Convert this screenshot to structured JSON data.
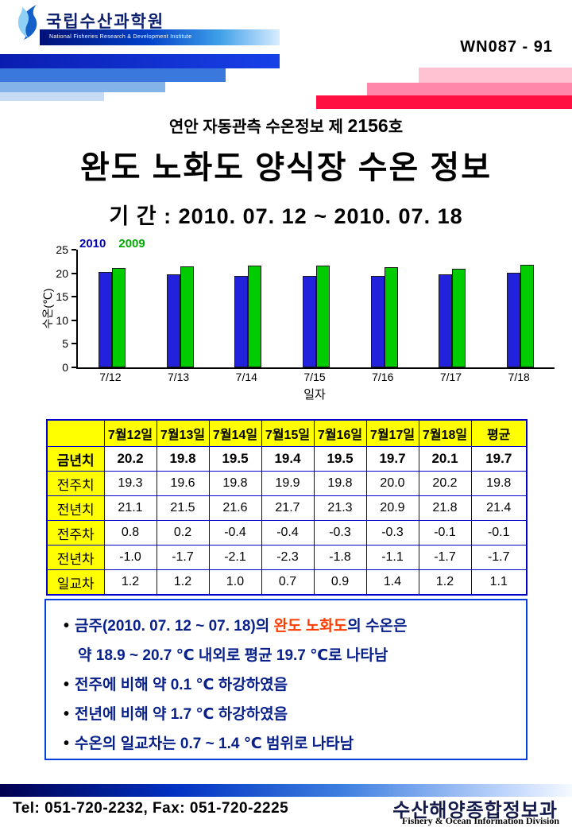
{
  "header": {
    "org_name": "국립수산과학원",
    "org_subtitle": "National Fisheries Research & Development Institute",
    "doc_code": "WN087 - 91"
  },
  "titles": {
    "subtitle_prefix": "연안 자동관측 수온정보 제 ",
    "subtitle_number": "2156",
    "subtitle_suffix": "호",
    "main_title": "완도 노화도 양식장 수온 정보",
    "period": "기 간 : 2010. 07. 12 ~ 2010. 07. 18"
  },
  "chart_data": {
    "type": "bar",
    "title": "",
    "categories": [
      "7/12",
      "7/13",
      "7/14",
      "7/15",
      "7/16",
      "7/17",
      "7/18"
    ],
    "series": [
      {
        "name": "2010",
        "color": "#2222dd",
        "label_color": "#0000aa",
        "values": [
          20.2,
          19.8,
          19.5,
          19.4,
          19.5,
          19.7,
          20.1
        ]
      },
      {
        "name": "2009",
        "color": "#00cc00",
        "label_color": "#00aa00",
        "values": [
          21.1,
          21.5,
          21.6,
          21.7,
          21.3,
          20.9,
          21.8
        ]
      }
    ],
    "xlabel": "일자",
    "ylabel": "수온(℃)",
    "ylim": [
      0,
      25
    ],
    "yticks": [
      0,
      5,
      10,
      15,
      20,
      25
    ],
    "legend_position": "top-left",
    "grid": false
  },
  "table": {
    "headers": [
      "",
      "7월12일",
      "7월13일",
      "7월14일",
      "7월15일",
      "7월16일",
      "7월17일",
      "7월18일",
      "평균"
    ],
    "rows": [
      {
        "label": "금년치",
        "emphasis": true,
        "values": [
          "20.2",
          "19.8",
          "19.5",
          "19.4",
          "19.5",
          "19.7",
          "20.1",
          "19.7"
        ]
      },
      {
        "label": "전주치",
        "emphasis": false,
        "values": [
          "19.3",
          "19.6",
          "19.8",
          "19.9",
          "19.8",
          "20.0",
          "20.2",
          "19.8"
        ]
      },
      {
        "label": "전년치",
        "emphasis": false,
        "values": [
          "21.1",
          "21.5",
          "21.6",
          "21.7",
          "21.3",
          "20.9",
          "21.8",
          "21.4"
        ]
      },
      {
        "label": "전주차",
        "emphasis": false,
        "values": [
          "0.8",
          "0.2",
          "-0.4",
          "-0.4",
          "-0.3",
          "-0.3",
          "-0.1",
          "-0.1"
        ]
      },
      {
        "label": "전년차",
        "emphasis": false,
        "values": [
          "-1.0",
          "-1.7",
          "-2.1",
          "-2.3",
          "-1.8",
          "-1.1",
          "-1.7",
          "-1.7"
        ]
      },
      {
        "label": "일교차",
        "emphasis": false,
        "values": [
          "1.2",
          "1.2",
          "1.0",
          "0.7",
          "0.9",
          "1.4",
          "1.2",
          "1.1"
        ]
      }
    ]
  },
  "summary": {
    "bullet": "•",
    "line1_pre": "금주(2010. 07. 12 ~ 07. 18)의 ",
    "line1_highlight": "완도 노화도",
    "line1_post": "의 수온은",
    "line1_cont": "약 18.9 ~ 20.7 ℃ 내외로 평균 19.7 ℃로 나타남",
    "line2": "전주에 비해 약 0.1 ℃ 하강하였음",
    "line3": "전년에 비해 약 1.7 ℃ 하강하였음",
    "line4": "수온의 일교차는 0.7 ~ 1.4 ℃ 범위로 나타남",
    "highlight_color": "#ff3c00",
    "text_color": "#08208a"
  },
  "footer": {
    "contact": "Tel: 051-720-2232,  Fax: 051-720-2225",
    "division_kr": "수산해양종합정보과",
    "division_en": "Fishery & Ocean Information Division"
  }
}
